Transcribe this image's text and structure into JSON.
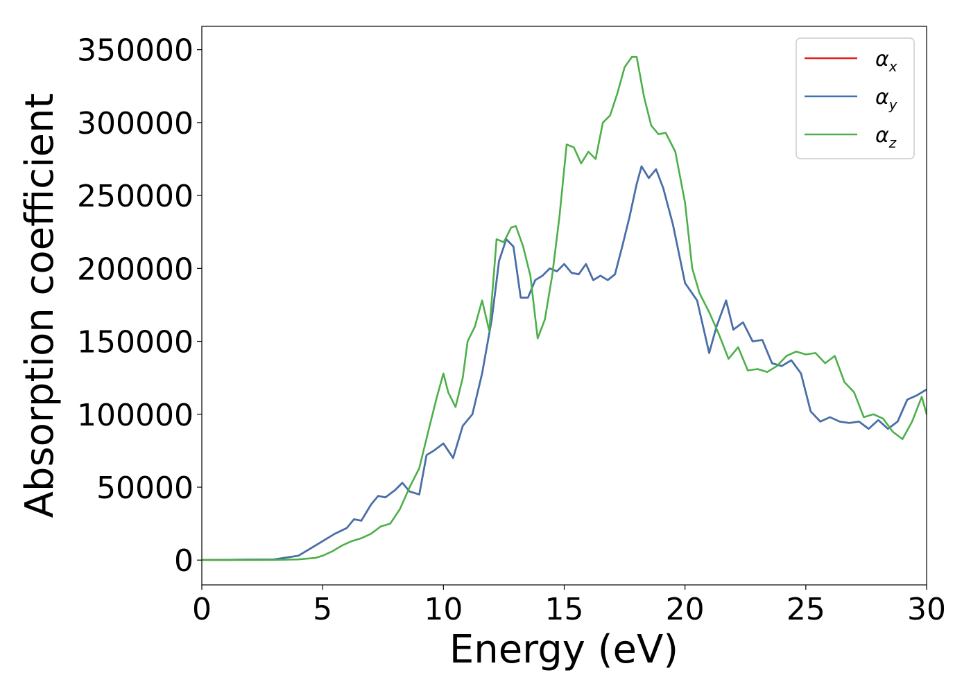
{
  "chart_data": {
    "type": "line",
    "title": "",
    "xlabel": "Energy (eV)",
    "ylabel": "Absorption coefficient",
    "xlim": [
      0,
      30
    ],
    "ylim": [
      -17000,
      366000
    ],
    "xticks": [
      0,
      5,
      10,
      15,
      20,
      25,
      30
    ],
    "yticks": [
      0,
      50000,
      100000,
      150000,
      200000,
      250000,
      300000,
      350000
    ],
    "grid": false,
    "legend_position": "top-right",
    "series": [
      {
        "name": "αx",
        "legend_symbol": "α",
        "legend_subscript": "x",
        "color": "#e41a1c",
        "x": [
          0,
          3,
          4,
          4.5,
          5,
          5.5,
          6,
          6.3,
          6.6,
          7,
          7.3,
          7.6,
          8,
          8.3,
          8.6,
          9,
          9.3,
          9.6,
          10,
          10.4,
          10.8,
          11.2,
          11.6,
          12,
          12.3,
          12.6,
          12.9,
          13.2,
          13.5,
          13.8,
          14.1,
          14.4,
          14.7,
          15,
          15.3,
          15.6,
          15.9,
          16.2,
          16.5,
          16.8,
          17.1,
          17.4,
          17.7,
          18,
          18.2,
          18.5,
          18.8,
          19.1,
          19.5,
          20,
          20.5,
          21,
          21.3,
          21.7,
          22,
          22.4,
          22.8,
          23.2,
          23.6,
          24,
          24.4,
          24.8,
          25.2,
          25.6,
          26,
          26.4,
          26.8,
          27.2,
          27.6,
          28,
          28.4,
          28.8,
          29.2,
          29.6,
          30
        ],
        "y": [
          0,
          500,
          3000,
          8000,
          13000,
          18000,
          22000,
          28000,
          27000,
          38000,
          44000,
          43000,
          48000,
          53000,
          47000,
          45000,
          72000,
          75000,
          80000,
          70000,
          92000,
          100000,
          128000,
          165000,
          205000,
          220000,
          215000,
          180000,
          180000,
          192000,
          195000,
          200000,
          198000,
          203000,
          197000,
          196000,
          203000,
          192000,
          195000,
          192000,
          196000,
          215000,
          235000,
          258000,
          270000,
          262000,
          268000,
          255000,
          230000,
          190000,
          178000,
          142000,
          160000,
          178000,
          158000,
          163000,
          150000,
          151000,
          135000,
          133000,
          137000,
          128000,
          102000,
          95000,
          98000,
          95000,
          94000,
          95000,
          90000,
          96000,
          90000,
          95000,
          110000,
          113000,
          117000
        ]
      },
      {
        "name": "αy",
        "legend_symbol": "α",
        "legend_subscript": "y",
        "color": "#3f72af",
        "x": [
          0,
          3,
          4,
          4.5,
          5,
          5.5,
          6,
          6.3,
          6.6,
          7,
          7.3,
          7.6,
          8,
          8.3,
          8.6,
          9,
          9.3,
          9.6,
          10,
          10.4,
          10.8,
          11.2,
          11.6,
          12,
          12.3,
          12.6,
          12.9,
          13.2,
          13.5,
          13.8,
          14.1,
          14.4,
          14.7,
          15,
          15.3,
          15.6,
          15.9,
          16.2,
          16.5,
          16.8,
          17.1,
          17.4,
          17.7,
          18,
          18.2,
          18.5,
          18.8,
          19.1,
          19.5,
          20,
          20.5,
          21,
          21.3,
          21.7,
          22,
          22.4,
          22.8,
          23.2,
          23.6,
          24,
          24.4,
          24.8,
          25.2,
          25.6,
          26,
          26.4,
          26.8,
          27.2,
          27.6,
          28,
          28.4,
          28.8,
          29.2,
          29.6,
          30
        ],
        "y": [
          0,
          500,
          3000,
          8000,
          13000,
          18000,
          22000,
          28000,
          27000,
          38000,
          44000,
          43000,
          48000,
          53000,
          47000,
          45000,
          72000,
          75000,
          80000,
          70000,
          92000,
          100000,
          128000,
          165000,
          205000,
          220000,
          215000,
          180000,
          180000,
          192000,
          195000,
          200000,
          198000,
          203000,
          197000,
          196000,
          203000,
          192000,
          195000,
          192000,
          196000,
          215000,
          235000,
          258000,
          270000,
          262000,
          268000,
          255000,
          230000,
          190000,
          178000,
          142000,
          160000,
          178000,
          158000,
          163000,
          150000,
          151000,
          135000,
          133000,
          137000,
          128000,
          102000,
          95000,
          98000,
          95000,
          94000,
          95000,
          90000,
          96000,
          90000,
          95000,
          110000,
          113000,
          117000
        ]
      },
      {
        "name": "αz",
        "legend_symbol": "α",
        "legend_subscript": "z",
        "color": "#4daf4a",
        "x": [
          0,
          3,
          4,
          4.7,
          5,
          5.4,
          5.8,
          6.2,
          6.6,
          7,
          7.4,
          7.8,
          8.2,
          8.6,
          9,
          9.4,
          9.7,
          10,
          10.2,
          10.5,
          10.8,
          11,
          11.3,
          11.6,
          11.9,
          12.2,
          12.5,
          12.8,
          13,
          13.3,
          13.6,
          13.9,
          14.2,
          14.5,
          14.8,
          15.1,
          15.4,
          15.7,
          16,
          16.3,
          16.6,
          16.9,
          17.2,
          17.5,
          17.8,
          18,
          18.3,
          18.6,
          18.9,
          19.2,
          19.6,
          20,
          20.3,
          20.6,
          21,
          21.4,
          21.8,
          22.2,
          22.6,
          23,
          23.4,
          23.8,
          24.2,
          24.6,
          25,
          25.4,
          25.8,
          26.2,
          26.6,
          27,
          27.4,
          27.8,
          28.2,
          28.6,
          29,
          29.4,
          29.8,
          30
        ],
        "y": [
          0,
          100,
          500,
          1500,
          3000,
          6000,
          10000,
          13000,
          15000,
          18000,
          23000,
          25000,
          35000,
          50000,
          63000,
          90000,
          110000,
          128000,
          115000,
          105000,
          125000,
          150000,
          160000,
          178000,
          157000,
          220000,
          218000,
          228000,
          229000,
          215000,
          195000,
          152000,
          165000,
          195000,
          235000,
          285000,
          283000,
          272000,
          280000,
          275000,
          300000,
          305000,
          320000,
          338000,
          345000,
          345000,
          318000,
          298000,
          292000,
          293000,
          280000,
          245000,
          200000,
          183000,
          170000,
          155000,
          138000,
          146000,
          130000,
          131000,
          129000,
          133000,
          140000,
          143000,
          141000,
          142000,
          135000,
          140000,
          122000,
          115000,
          98000,
          100000,
          97000,
          88000,
          83000,
          95000,
          112000,
          100000
        ]
      }
    ]
  }
}
